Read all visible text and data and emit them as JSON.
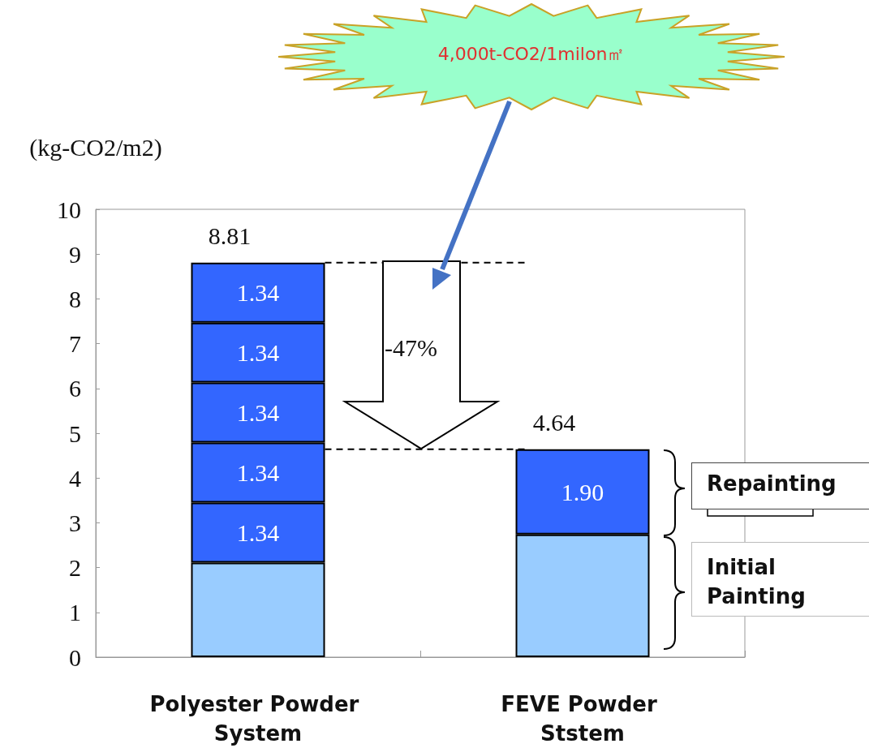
{
  "chart_data": {
    "type": "bar",
    "stacked": true,
    "ylabel": "(kg-CO2/m2)",
    "categories": [
      "Polyester Powder System",
      "FEVE Powder Ststem"
    ],
    "series": [
      {
        "color": "#99ccff",
        "values": [
          2.11,
          2.74
        ]
      },
      {
        "color": "#3366ff",
        "values": [
          1.34,
          1.9
        ],
        "value_labels": [
          "1.34",
          "1.90"
        ]
      },
      {
        "color": "#3366ff",
        "values": [
          1.34,
          null
        ],
        "value_labels": [
          "1.34",
          null
        ]
      },
      {
        "color": "#3366ff",
        "values": [
          1.34,
          null
        ],
        "value_labels": [
          "1.34",
          null
        ]
      },
      {
        "color": "#3366ff",
        "values": [
          1.34,
          null
        ],
        "value_labels": [
          "1.34",
          null
        ]
      },
      {
        "color": "#3366ff",
        "values": [
          1.34,
          null
        ],
        "value_labels": [
          "1.34",
          null
        ]
      }
    ],
    "totals": [
      "8.81",
      "4.64"
    ],
    "ylim": [
      0,
      10
    ],
    "yticks": [
      0,
      1,
      2,
      3,
      4,
      5,
      6,
      7,
      8,
      9,
      10
    ],
    "grid": false,
    "ref_lines": [
      {
        "axis": "y",
        "value": 8.81,
        "line_style": "dashed",
        "color": "#000000"
      },
      {
        "axis": "y",
        "value": 4.64,
        "line_style": "dashed",
        "color": "#000000"
      }
    ],
    "annotations": [
      "4,000t-CO2/1milon㎡",
      "-47%",
      "Repainting",
      "Initial Painting"
    ]
  }
}
